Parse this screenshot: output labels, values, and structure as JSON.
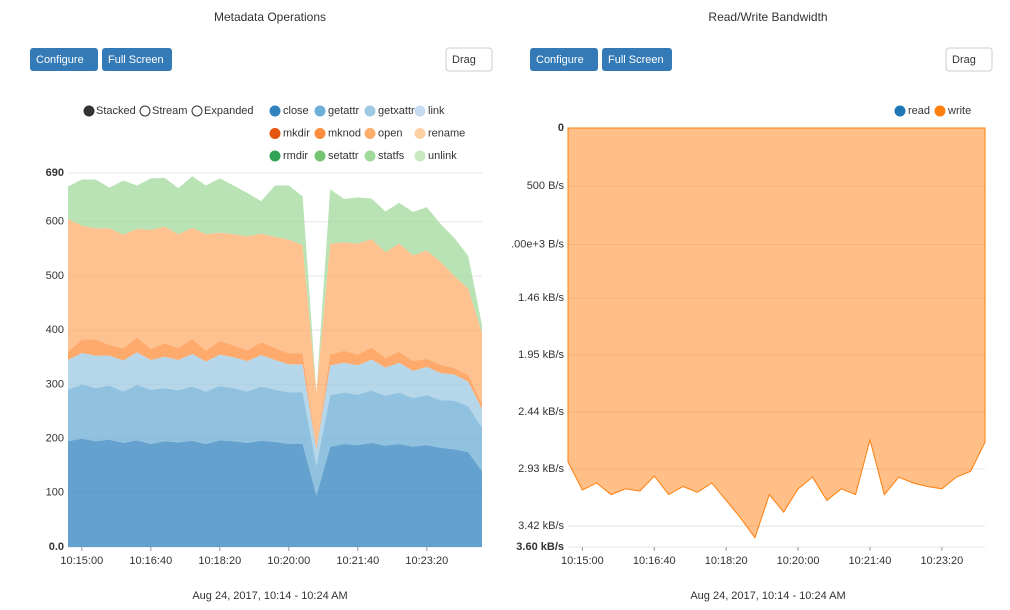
{
  "toolbar": {
    "configure": "Configure",
    "full_screen": "Full Screen",
    "drag": "Drag"
  },
  "chart_data": [
    {
      "type": "area",
      "stacked": true,
      "title": "Metadata Operations",
      "xlabel": "Aug 24, 2017, 10:14 - 10:24 AM",
      "controls": [
        "Stacked",
        "Stream",
        "Expanded"
      ],
      "selected_control": "Stacked",
      "grid": true,
      "x": [
        "10:14:40",
        "10:15:00",
        "10:15:20",
        "10:15:40",
        "10:16:00",
        "10:16:20",
        "10:16:40",
        "10:17:00",
        "10:17:20",
        "10:17:40",
        "10:18:00",
        "10:18:20",
        "10:18:40",
        "10:19:00",
        "10:19:20",
        "10:19:40",
        "10:20:00",
        "10:20:20",
        "10:20:40",
        "10:21:00",
        "10:21:20",
        "10:21:40",
        "10:22:00",
        "10:22:20",
        "10:22:40",
        "10:23:00",
        "10:23:20",
        "10:23:40",
        "10:24:00",
        "10:24:20",
        "10:24:40"
      ],
      "xticks": [
        "10:15:00",
        "10:16:40",
        "10:18:20",
        "10:20:00",
        "10:21:40",
        "10:23:20"
      ],
      "ylim": [
        0,
        690
      ],
      "yticks": [
        {
          "value": 0,
          "label": "0.0"
        },
        100,
        200,
        300,
        400,
        500,
        600,
        690
      ],
      "series": [
        {
          "name": "close",
          "color": "#3182bd",
          "values": [
            195,
            200,
            195,
            198,
            192,
            197,
            190,
            195,
            193,
            196,
            190,
            197,
            195,
            192,
            196,
            194,
            190,
            190,
            95,
            185,
            190,
            188,
            192,
            187,
            190,
            185,
            188,
            183,
            180,
            175,
            140
          ]
        },
        {
          "name": "getattr",
          "color": "#6baed6",
          "values": [
            95,
            100,
            98,
            100,
            95,
            102,
            100,
            98,
            96,
            100,
            97,
            100,
            98,
            95,
            100,
            96,
            95,
            95,
            55,
            95,
            95,
            93,
            97,
            92,
            95,
            90,
            92,
            88,
            90,
            85,
            80
          ]
        },
        {
          "name": "getxattr",
          "color": "#9ecae1",
          "values": [
            55,
            58,
            60,
            55,
            57,
            60,
            55,
            58,
            56,
            60,
            55,
            58,
            57,
            56,
            58,
            55,
            52,
            52,
            30,
            55,
            55,
            54,
            57,
            52,
            55,
            50,
            52,
            50,
            48,
            45,
            35
          ]
        },
        {
          "name": "link",
          "color": "#c6dbef",
          "values": [
            0,
            0,
            0,
            0,
            0,
            0,
            0,
            0,
            0,
            0,
            0,
            0,
            0,
            0,
            0,
            0,
            0,
            0,
            0,
            0,
            0,
            0,
            0,
            0,
            0,
            0,
            0,
            0,
            0,
            0,
            0
          ]
        },
        {
          "name": "mkdir",
          "color": "#e6550d",
          "values": [
            0,
            0,
            0,
            0,
            0,
            0,
            0,
            0,
            0,
            0,
            0,
            0,
            0,
            0,
            0,
            0,
            0,
            0,
            0,
            0,
            0,
            0,
            0,
            0,
            0,
            0,
            0,
            0,
            0,
            0,
            0
          ]
        },
        {
          "name": "mknod",
          "color": "#fd8d3c",
          "values": [
            15,
            25,
            30,
            20,
            22,
            28,
            20,
            25,
            22,
            28,
            20,
            25,
            22,
            20,
            24,
            22,
            20,
            20,
            5,
            20,
            22,
            20,
            22,
            18,
            20,
            18,
            15,
            15,
            12,
            12,
            10
          ]
        },
        {
          "name": "open",
          "color": "#fdae6b",
          "values": [
            245,
            210,
            205,
            215,
            210,
            200,
            220,
            215,
            210,
            205,
            215,
            200,
            205,
            210,
            200,
            205,
            210,
            200,
            100,
            205,
            200,
            205,
            200,
            195,
            200,
            195,
            200,
            190,
            170,
            160,
            130
          ]
        },
        {
          "name": "rename",
          "color": "#fdd0a2",
          "values": [
            0,
            0,
            0,
            0,
            0,
            0,
            0,
            0,
            0,
            0,
            0,
            0,
            0,
            0,
            0,
            0,
            0,
            0,
            0,
            0,
            0,
            0,
            0,
            0,
            0,
            0,
            0,
            0,
            0,
            0,
            0
          ]
        },
        {
          "name": "rmdir",
          "color": "#31a354",
          "values": [
            0,
            0,
            0,
            0,
            0,
            0,
            0,
            0,
            0,
            0,
            0,
            0,
            0,
            0,
            0,
            0,
            0,
            0,
            0,
            0,
            0,
            0,
            0,
            0,
            0,
            0,
            0,
            0,
            0,
            0,
            0
          ]
        },
        {
          "name": "setattr",
          "color": "#74c476",
          "values": [
            0,
            0,
            0,
            0,
            0,
            0,
            0,
            0,
            0,
            0,
            0,
            0,
            0,
            0,
            0,
            0,
            0,
            0,
            0,
            0,
            0,
            0,
            0,
            0,
            0,
            0,
            0,
            0,
            0,
            0,
            0
          ]
        },
        {
          "name": "statfs",
          "color": "#a1d99b",
          "values": [
            60,
            85,
            90,
            75,
            100,
            80,
            95,
            90,
            85,
            95,
            90,
            100,
            90,
            80,
            60,
            95,
            100,
            90,
            0,
            100,
            80,
            85,
            75,
            75,
            75,
            80,
            80,
            70,
            70,
            60,
            15
          ]
        },
        {
          "name": "unlink",
          "color": "#c7e9c0",
          "values": [
            0,
            0,
            0,
            0,
            0,
            0,
            0,
            0,
            0,
            0,
            0,
            0,
            0,
            0,
            0,
            0,
            0,
            0,
            0,
            0,
            0,
            0,
            0,
            0,
            0,
            0,
            0,
            0,
            0,
            0,
            0
          ]
        }
      ]
    },
    {
      "type": "area",
      "stacked": false,
      "title": "Read/Write Bandwidth",
      "xlabel": "Aug 24, 2017, 10:14 - 10:24 AM",
      "grid": true,
      "x": [
        "10:14:40",
        "10:15:00",
        "10:15:20",
        "10:15:40",
        "10:16:00",
        "10:16:20",
        "10:16:40",
        "10:17:00",
        "10:17:20",
        "10:17:40",
        "10:18:00",
        "10:18:20",
        "10:18:40",
        "10:19:00",
        "10:19:20",
        "10:19:40",
        "10:20:00",
        "10:20:20",
        "10:20:40",
        "10:21:00",
        "10:21:20",
        "10:21:40",
        "10:22:00",
        "10:22:20",
        "10:22:40",
        "10:23:00",
        "10:23:20",
        "10:23:40",
        "10:24:00",
        "10:24:20"
      ],
      "xticks": [
        "10:15:00",
        "10:16:40",
        "10:18:20",
        "10:20:00",
        "10:21:40",
        "10:23:20"
      ],
      "ylim": [
        3600,
        0
      ],
      "yticks": [
        0,
        {
          "value": 500,
          "label": "500 B/s"
        },
        {
          "value": 1000,
          "label": ".00e+3 B/s"
        },
        {
          "value": 1460,
          "label": "1.46 kB/s"
        },
        {
          "value": 1950,
          "label": "1.95 kB/s"
        },
        {
          "value": 2440,
          "label": "2.44 kB/s"
        },
        {
          "value": 2930,
          "label": "2.93 kB/s"
        },
        {
          "value": 3420,
          "label": "3.42 kB/s"
        },
        {
          "value": 3600,
          "label": "3.60 kB/s"
        }
      ],
      "series": [
        {
          "name": "read",
          "color": "#1f77b4",
          "values": [
            0,
            0,
            0,
            0,
            0,
            0,
            0,
            0,
            0,
            0,
            0,
            0,
            0,
            0,
            0,
            0,
            0,
            0,
            0,
            0,
            0,
            0,
            0,
            0,
            0,
            0,
            0,
            0,
            0,
            0
          ]
        },
        {
          "name": "write",
          "color": "#ff7f0e",
          "values": [
            2870,
            3110,
            3050,
            3150,
            3100,
            3120,
            2990,
            3150,
            3080,
            3130,
            3050,
            3200,
            3350,
            3520,
            3150,
            3300,
            3100,
            3000,
            3200,
            3100,
            3150,
            2680,
            3150,
            3000,
            3050,
            3080,
            3100,
            3000,
            2950,
            2700
          ]
        }
      ]
    }
  ]
}
